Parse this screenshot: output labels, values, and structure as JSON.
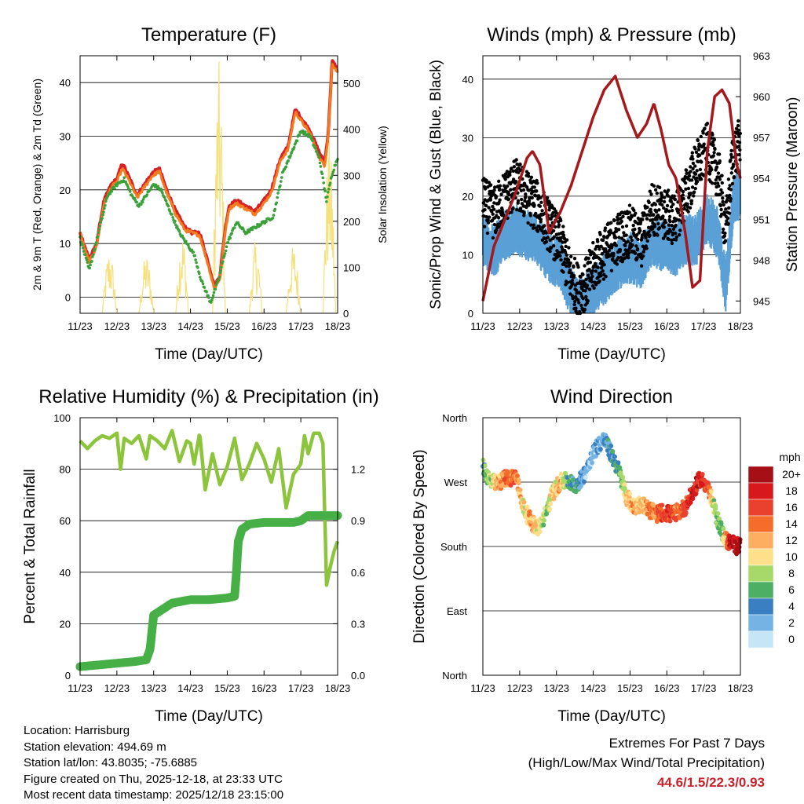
{
  "chart_data": [
    {
      "id": "temperature",
      "type": "line",
      "title": "Temperature (F)",
      "xlabel": "Time (Day/UTC)",
      "ylabel": "2m & 9m T (Red, Orange) & 2m Td (Green)",
      "y2label": "Solar Insolation (Yellow)",
      "x_ticks": [
        "11/23",
        "12/23",
        "13/23",
        "14/23",
        "15/23",
        "16/23",
        "17/23",
        "18/23"
      ],
      "xlim": [
        0,
        7
      ],
      "ylim": [
        -3,
        45
      ],
      "y_ticks": [
        0,
        10,
        20,
        30,
        40
      ],
      "y2lim": [
        0,
        560
      ],
      "y2_ticks": [
        0,
        100,
        200,
        300,
        400,
        500
      ],
      "series": [
        {
          "name": "2m T",
          "color": "#d62024",
          "x": [
            0,
            0.1,
            0.25,
            0.45,
            0.65,
            0.85,
            1.0,
            1.15,
            1.35,
            1.55,
            1.75,
            1.95,
            2.15,
            2.35,
            2.6,
            2.85,
            3.05,
            3.25,
            3.5,
            3.65,
            3.8,
            3.95,
            4.05,
            4.25,
            4.5,
            4.75,
            5.0,
            5.2,
            5.45,
            5.65,
            5.85,
            6.05,
            6.25,
            6.5,
            6.65,
            6.75,
            6.85,
            6.95,
            7.0
          ],
          "y": [
            12,
            10,
            7,
            10,
            18,
            21,
            22,
            25,
            22,
            19,
            21,
            23,
            24,
            20,
            16,
            13,
            12,
            12,
            6,
            2,
            4,
            13,
            17,
            18,
            17,
            16,
            18,
            20,
            26,
            28,
            35,
            33,
            31,
            27,
            25,
            31,
            44,
            43,
            42
          ]
        },
        {
          "name": "9m T",
          "color": "#f47c20",
          "x": [
            0,
            0.1,
            0.25,
            0.45,
            0.65,
            0.85,
            1.0,
            1.15,
            1.35,
            1.55,
            1.75,
            1.95,
            2.15,
            2.35,
            2.6,
            2.85,
            3.05,
            3.25,
            3.5,
            3.65,
            3.8,
            3.95,
            4.05,
            4.25,
            4.5,
            4.75,
            5.0,
            5.2,
            5.45,
            5.65,
            5.85,
            6.05,
            6.25,
            6.5,
            6.65,
            6.75,
            6.85,
            6.95,
            7.0
          ],
          "y": [
            12,
            9.5,
            6.5,
            9.5,
            17.5,
            20.5,
            21.5,
            24,
            21.5,
            18.5,
            20.5,
            22.5,
            23.5,
            19.5,
            15.5,
            12.5,
            12,
            11.5,
            5.5,
            1.5,
            3.5,
            12.5,
            16.5,
            17.5,
            16.5,
            15.5,
            17.5,
            19.5,
            25.5,
            27.5,
            34.5,
            32.5,
            30.5,
            26,
            24.5,
            30.5,
            43.5,
            42.5,
            42
          ]
        },
        {
          "name": "2m Td",
          "color": "#3aa13a",
          "x": [
            0,
            0.25,
            0.5,
            0.75,
            1.0,
            1.2,
            1.4,
            1.6,
            1.8,
            2.0,
            2.2,
            2.45,
            2.7,
            2.9,
            3.1,
            3.3,
            3.55,
            3.75,
            4.0,
            4.25,
            4.5,
            4.75,
            5.0,
            5.25,
            5.5,
            5.75,
            6.0,
            6.25,
            6.5,
            6.7,
            6.85,
            7.0
          ],
          "y": [
            11,
            5,
            12,
            19,
            21,
            22,
            19,
            17,
            19,
            21,
            20,
            16,
            12,
            10,
            8,
            3,
            -1,
            3,
            10,
            14,
            12,
            13,
            14,
            15,
            23,
            27,
            31,
            30,
            26,
            18,
            23,
            26
          ]
        }
      ],
      "insolation_days": [
        {
          "start": 0.6,
          "end": 1.0,
          "peak": 140
        },
        {
          "start": 1.6,
          "end": 2.0,
          "peak": 130
        },
        {
          "start": 2.6,
          "end": 2.95,
          "peak": 180
        },
        {
          "start": 3.6,
          "end": 3.95,
          "peak": 550
        },
        {
          "start": 4.6,
          "end": 4.95,
          "peak": 160
        },
        {
          "start": 5.6,
          "end": 6.0,
          "peak": 150
        },
        {
          "start": 6.6,
          "end": 6.95,
          "peak": 380
        }
      ],
      "insolation_color": "#f5e07a"
    },
    {
      "id": "winds",
      "type": "scatter",
      "title": "Winds (mph) & Pressure (mb)",
      "xlabel": "Time (Day/UTC)",
      "ylabel": "Sonic/Prop Wind & Gust (Blue, Black)",
      "y2label": "Station Pressure (Maroon)",
      "x_ticks": [
        "11/23",
        "12/23",
        "13/23",
        "14/23",
        "15/23",
        "16/23",
        "17/23",
        "18/23"
      ],
      "xlim": [
        0,
        7
      ],
      "ylim": [
        0,
        44
      ],
      "y_ticks": [
        0,
        10,
        20,
        30,
        40
      ],
      "y2lim": [
        944.1,
        963
      ],
      "y2_ticks": [
        945,
        948,
        951,
        954,
        957,
        960,
        963
      ],
      "wind_x": [
        0,
        0.3,
        0.6,
        0.9,
        1.2,
        1.5,
        1.8,
        2.1,
        2.4,
        2.6,
        2.8,
        3.1,
        3.4,
        3.7,
        4.0,
        4.3,
        4.6,
        4.9,
        5.2,
        5.5,
        5.8,
        6.1,
        6.4,
        6.6,
        6.8,
        7.0
      ],
      "wind_y": [
        12,
        10,
        13,
        14,
        13,
        12,
        9,
        8,
        3,
        1,
        2,
        4,
        6,
        8,
        9,
        8,
        12,
        11,
        10,
        12,
        12,
        16,
        13,
        4,
        18,
        20
      ],
      "gust_y": [
        19,
        17,
        20,
        22,
        20,
        18,
        15,
        12,
        6,
        4,
        5,
        9,
        11,
        13,
        14,
        12,
        18,
        17,
        16,
        20,
        25,
        28,
        24,
        14,
        27,
        29
      ],
      "wind_color": "#5aa0d6",
      "gust_color": "#000000",
      "pressure_x": [
        0,
        0.3,
        0.6,
        0.9,
        1.2,
        1.35,
        1.55,
        1.8,
        2.1,
        2.4,
        2.7,
        3.0,
        3.3,
        3.6,
        3.9,
        4.2,
        4.45,
        4.65,
        4.85,
        5.05,
        5.25,
        5.5,
        5.7,
        5.9,
        6.1,
        6.3,
        6.5,
        6.7,
        6.9,
        7.0
      ],
      "pressure_y": [
        945,
        949,
        951,
        953,
        955.5,
        956,
        955,
        950,
        951.5,
        953.5,
        956,
        958.5,
        960.5,
        961.5,
        959,
        957,
        958,
        959.5,
        957.5,
        955,
        954,
        950,
        946,
        946.5,
        956,
        960,
        960.5,
        959.5,
        955,
        954
      ],
      "pressure_color": "#a5191d"
    },
    {
      "id": "humidity",
      "type": "line",
      "title": "Relative Humidity (%) & Precipitation (in)",
      "xlabel": "Time (Day/UTC)",
      "ylabel": "Percent & Total Rainfall",
      "x_ticks": [
        "11/23",
        "12/23",
        "13/23",
        "14/23",
        "15/23",
        "16/23",
        "17/23",
        "18/23"
      ],
      "xlim": [
        0,
        7
      ],
      "ylim": [
        0,
        100
      ],
      "y_ticks": [
        0,
        20,
        40,
        60,
        80,
        100
      ],
      "y2lim": [
        0,
        1.5
      ],
      "y2_ticks": [
        "0.0",
        "0.3",
        "0.6",
        "0.9",
        "1.2"
      ],
      "rh": {
        "color": "#8cc43c",
        "x": [
          0,
          0.2,
          0.4,
          0.6,
          0.8,
          1.0,
          1.1,
          1.2,
          1.4,
          1.6,
          1.8,
          1.9,
          2.0,
          2.1,
          2.3,
          2.5,
          2.7,
          2.9,
          3.0,
          3.1,
          3.25,
          3.4,
          3.6,
          3.8,
          4.0,
          4.2,
          4.4,
          4.6,
          4.8,
          5.0,
          5.2,
          5.4,
          5.6,
          5.8,
          6.0,
          6.1,
          6.2,
          6.35,
          6.5,
          6.6,
          6.7,
          6.8,
          6.9,
          7.0
        ],
        "y": [
          91,
          88,
          91,
          93,
          92,
          94,
          80,
          92,
          90,
          93,
          84,
          93,
          92,
          91,
          88,
          95,
          83,
          91,
          90,
          82,
          94,
          72,
          86,
          74,
          81,
          92,
          76,
          82,
          90,
          84,
          75,
          88,
          65,
          78,
          82,
          93,
          86,
          94,
          94,
          90,
          35,
          42,
          48,
          52
        ]
      },
      "precip": {
        "color": "#46b046",
        "x": [
          0,
          0.5,
          1.0,
          1.5,
          1.8,
          1.9,
          2.0,
          2.5,
          3.0,
          3.5,
          4.0,
          4.2,
          4.25,
          4.3,
          4.4,
          4.6,
          5.0,
          5.5,
          5.8,
          6.0,
          6.2,
          6.5,
          7.0
        ],
        "y": [
          0.05,
          0.06,
          0.07,
          0.08,
          0.09,
          0.15,
          0.35,
          0.42,
          0.44,
          0.44,
          0.45,
          0.46,
          0.6,
          0.78,
          0.85,
          0.88,
          0.89,
          0.89,
          0.89,
          0.9,
          0.93,
          0.93,
          0.93
        ]
      }
    },
    {
      "id": "winddir",
      "type": "scatter",
      "title": "Wind Direction",
      "xlabel": "Time (Day/UTC)",
      "ylabel": "Direction (Colored By Speed)",
      "x_ticks": [
        "11/23",
        "12/23",
        "13/23",
        "14/23",
        "15/23",
        "16/23",
        "17/23",
        "18/23"
      ],
      "xlim": [
        0,
        7
      ],
      "ylim": [
        0,
        360
      ],
      "y_ticks": [
        "North",
        "East",
        "South",
        "West",
        "North"
      ],
      "x": [
        0,
        0.2,
        0.4,
        0.6,
        0.9,
        1.1,
        1.3,
        1.5,
        1.7,
        1.9,
        2.1,
        2.3,
        2.5,
        2.7,
        2.9,
        3.1,
        3.3,
        3.5,
        3.7,
        3.9,
        4.1,
        4.3,
        4.5,
        4.7,
        4.9,
        5.1,
        5.3,
        5.5,
        5.7,
        5.9,
        6.1,
        6.3,
        6.5,
        6.6,
        6.7,
        6.8,
        6.9,
        7.0
      ],
      "dir": [
        292,
        270,
        268,
        275,
        278,
        235,
        215,
        205,
        225,
        255,
        270,
        272,
        265,
        275,
        300,
        320,
        330,
        308,
        285,
        250,
        235,
        240,
        232,
        225,
        228,
        225,
        228,
        235,
        255,
        275,
        265,
        230,
        200,
        190,
        185,
        185,
        180,
        182
      ],
      "speed": [
        6,
        8,
        12,
        14,
        14,
        10,
        12,
        10,
        8,
        10,
        12,
        6,
        4,
        3,
        2,
        2,
        3,
        4,
        6,
        10,
        12,
        10,
        14,
        14,
        16,
        16,
        14,
        16,
        18,
        18,
        16,
        8,
        6,
        12,
        18,
        20,
        20,
        20
      ],
      "colorbar": {
        "title": "mph",
        "labels": [
          "20+",
          "18",
          "16",
          "14",
          "12",
          "10",
          "8",
          "6",
          "4",
          "2",
          "0"
        ],
        "colors": [
          "#a50f15",
          "#d7191c",
          "#e8422e",
          "#f46d2b",
          "#fdae61",
          "#fee08b",
          "#a6d96a",
          "#4daf63",
          "#3a7fc1",
          "#74b3e4",
          "#c6e5f7"
        ]
      }
    }
  ],
  "footer": {
    "location": "Location: Harrisburg",
    "elevation": "Station elevation: 494.69 m",
    "latlon": "Station lat/lon: 43.8035; -75.6885",
    "created": "Figure created on Thu, 2025-12-18, at 23:33 UTC",
    "recent": "Most recent data timestamp: 2025/12/18 23:15:00"
  },
  "extremes": {
    "line1": "Extremes For Past 7 Days",
    "line2": "(High/Low/Max Wind/Total Precipitation)",
    "values": "44.6/1.5/22.3/0.93"
  }
}
